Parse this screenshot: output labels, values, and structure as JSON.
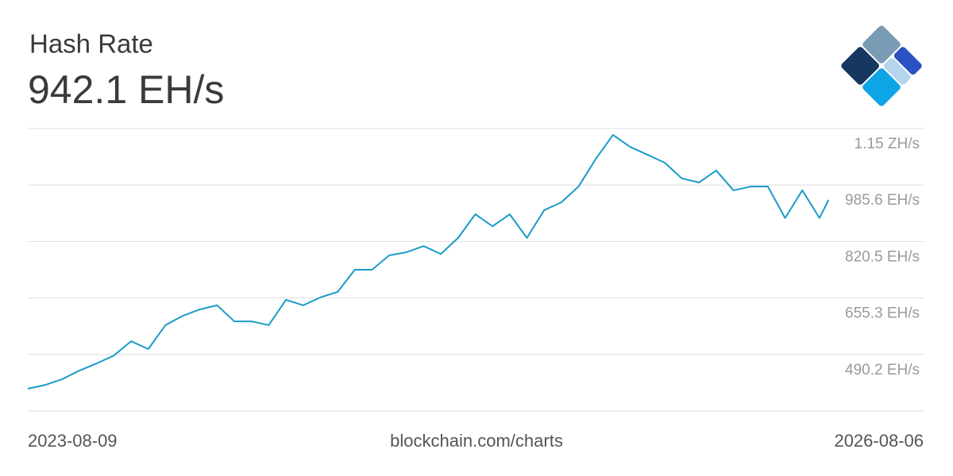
{
  "chart_data": {
    "type": "line",
    "title": "Hash Rate",
    "subtitle": "942.1 EH/s",
    "source": "blockchain.com/charts",
    "xlim": [
      "2023-08-09",
      "2026-08-06"
    ],
    "xticks": [
      "2023-08-09",
      "2026-08-06"
    ],
    "ylim": [
      325.1,
      1150.7
    ],
    "yticks": [
      {
        "value": 490.2,
        "label": "490.2 EH/s"
      },
      {
        "value": 655.3,
        "label": "655.3 EH/s"
      },
      {
        "value": 820.5,
        "label": "820.5 EH/s"
      },
      {
        "value": 985.6,
        "label": "985.6 EH/s"
      },
      {
        "value": 1150.7,
        "label": "1.15 ZH/s"
      }
    ],
    "grid": true,
    "x": [
      "2023-08-09",
      "2023-08-30",
      "2023-09-20",
      "2023-10-11",
      "2023-11-01",
      "2023-11-22",
      "2023-12-13",
      "2024-01-03",
      "2024-01-24",
      "2024-02-14",
      "2024-03-06",
      "2024-03-27",
      "2024-04-17",
      "2024-05-08",
      "2024-05-29",
      "2024-06-19",
      "2024-07-10",
      "2024-07-31",
      "2024-08-21",
      "2024-09-11",
      "2024-10-02",
      "2024-10-23",
      "2024-11-13",
      "2024-12-04",
      "2024-12-25",
      "2025-01-15",
      "2025-02-05",
      "2025-02-26",
      "2025-03-19",
      "2025-04-09",
      "2025-04-30",
      "2025-05-21",
      "2025-06-11",
      "2025-07-02",
      "2025-07-23",
      "2025-08-13",
      "2025-09-03",
      "2025-09-24",
      "2025-10-15",
      "2025-11-05",
      "2025-11-26",
      "2025-12-17",
      "2026-01-07",
      "2026-01-28",
      "2026-02-18",
      "2026-03-11",
      "2026-04-01",
      "2026-04-12"
    ],
    "series": [
      {
        "name": "Hash Rate",
        "color": "#1a9bc8",
        "values": [
          390,
          401,
          418,
          443,
          464,
          487,
          529,
          506,
          576,
          603,
          622,
          634,
          587,
          587,
          576,
          650,
          634,
          657,
          673,
          738,
          738,
          780,
          789,
          807,
          784,
          831,
          900,
          865,
          900,
          831,
          912,
          935,
          981,
          1062,
          1132,
          1097,
          1074,
          1051,
          1005,
          993,
          1028,
          970,
          981,
          981,
          889,
          970,
          889,
          942.1
        ]
      }
    ]
  }
}
